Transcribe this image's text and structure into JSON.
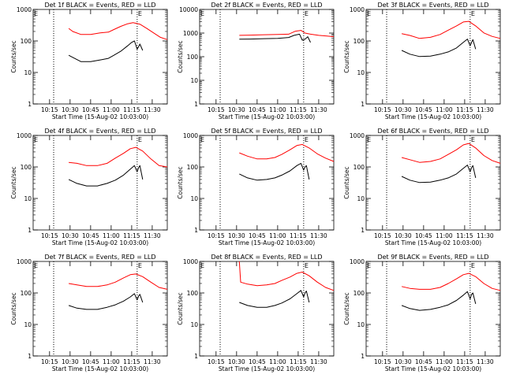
{
  "figure": {
    "colors": {
      "background": "#ffffff",
      "axes": "#000000",
      "events": "#000000",
      "lld": "#ff0000"
    },
    "ytick_labels": [
      "1",
      "10",
      "100",
      "1000"
    ],
    "xtick_labels": [
      "10:15",
      "10:30",
      "10:45",
      "11:00",
      "11:15",
      "11:30"
    ],
    "ylabel": "Counts/sec",
    "xlabel": "Start Time (15-Aug-02 10:03:00)",
    "marker_text": "E"
  },
  "chart_data": [
    {
      "type": "line",
      "title": "Det 1f BLACK = Events, RED = LLD",
      "xlabel": "Start Time (15-Aug-02 10:03:00)",
      "ylabel": "Counts/sec",
      "y_scale": "log",
      "ylim": [
        1,
        1000
      ],
      "xlim": [
        "10:03",
        "11:41"
      ],
      "x_ticks": [
        "10:15",
        "10:30",
        "10:45",
        "11:00",
        "11:15",
        "11:30"
      ],
      "vertical_dotted_lines": [
        "10:18",
        "11:19"
      ],
      "marker": {
        "text": "E",
        "x": "11:19"
      },
      "series": [
        {
          "name": "LLD",
          "color": "red",
          "x": [
            "10:29",
            "10:32",
            "10:38",
            "10:45",
            "10:52",
            "10:58",
            "11:02",
            "11:07",
            "11:12",
            "11:16",
            "11:21",
            "11:26",
            "11:31",
            "11:36",
            "11:41"
          ],
          "values": [
            250,
            200,
            160,
            160,
            180,
            190,
            230,
            290,
            350,
            380,
            340,
            250,
            180,
            130,
            110
          ]
        },
        {
          "name": "Events",
          "color": "black",
          "x": [
            "10:29",
            "10:32",
            "10:38",
            "10:45",
            "10:52",
            "10:58",
            "11:02",
            "11:07",
            "11:12",
            "11:15",
            "11:17",
            "11:19",
            "11:20",
            "11:21",
            "11:23"
          ],
          "values": [
            35,
            30,
            22,
            22,
            25,
            28,
            35,
            47,
            70,
            90,
            100,
            55,
            65,
            80,
            50
          ]
        }
      ]
    },
    {
      "type": "line",
      "title": "Det 2f BLACK = Events, RED = LLD",
      "xlabel": "Start Time (15-Aug-02 10:03:00)",
      "ylabel": "Counts/sec",
      "y_scale": "log",
      "ylim": [
        1,
        10000
      ],
      "xlim": [
        "10:03",
        "11:41"
      ],
      "x_ticks": [
        "10:15",
        "10:30",
        "10:45",
        "11:00",
        "11:15",
        "11:30"
      ],
      "vertical_dotted_lines": [
        "10:18",
        "11:19"
      ],
      "marker": {
        "text": "E",
        "x": "11:19"
      },
      "series": [
        {
          "name": "LLD",
          "color": "red",
          "x": [
            "10:32",
            "10:40",
            "10:50",
            "11:00",
            "11:08",
            "11:13",
            "11:17",
            "11:20",
            "11:24",
            "11:30",
            "11:36",
            "11:41"
          ],
          "values": [
            800,
            820,
            850,
            870,
            900,
            1200,
            1300,
            1000,
            900,
            800,
            750,
            700
          ]
        },
        {
          "name": "Events",
          "color": "black",
          "x": [
            "10:32",
            "10:40",
            "10:50",
            "11:00",
            "11:08",
            "11:12",
            "11:16",
            "11:18",
            "11:20",
            "11:22",
            "11:24"
          ],
          "values": [
            550,
            560,
            580,
            600,
            650,
            800,
            900,
            500,
            550,
            700,
            400
          ]
        }
      ]
    },
    {
      "type": "line",
      "title": "Det 3f BLACK = Events, RED = LLD",
      "xlabel": "Start Time (15-Aug-02 10:03:00)",
      "ylabel": "Counts/sec",
      "y_scale": "log",
      "ylim": [
        1,
        1000
      ],
      "xlim": [
        "10:03",
        "11:41"
      ],
      "x_ticks": [
        "10:15",
        "10:30",
        "10:45",
        "11:00",
        "11:15",
        "11:30"
      ],
      "vertical_dotted_lines": [
        "10:18",
        "11:19"
      ],
      "marker": {
        "text": "E",
        "x": "11:19"
      },
      "series": [
        {
          "name": "LLD",
          "color": "red",
          "x": [
            "10:29",
            "10:35",
            "10:42",
            "10:50",
            "10:57",
            "11:03",
            "11:09",
            "11:14",
            "11:18",
            "11:23",
            "11:29",
            "11:35",
            "11:41"
          ],
          "values": [
            170,
            150,
            120,
            130,
            160,
            220,
            300,
            400,
            420,
            300,
            180,
            140,
            120
          ]
        },
        {
          "name": "Events",
          "color": "black",
          "x": [
            "10:29",
            "10:35",
            "10:42",
            "10:50",
            "10:57",
            "11:03",
            "11:09",
            "11:14",
            "11:17",
            "11:19",
            "11:20",
            "11:21",
            "11:23"
          ],
          "values": [
            50,
            38,
            32,
            33,
            38,
            45,
            60,
            90,
            115,
            70,
            90,
            110,
            55
          ]
        }
      ]
    },
    {
      "type": "line",
      "title": "Det 4f BLACK = Events, RED = LLD",
      "xlabel": "Start Time (15-Aug-02 10:03:00)",
      "ylabel": "Counts/sec",
      "y_scale": "log",
      "ylim": [
        1,
        1000
      ],
      "xlim": [
        "10:03",
        "11:41"
      ],
      "x_ticks": [
        "10:15",
        "10:30",
        "10:45",
        "11:00",
        "11:15",
        "11:30"
      ],
      "vertical_dotted_lines": [
        "10:18",
        "11:19"
      ],
      "marker": {
        "text": "E",
        "x": "11:19"
      },
      "series": [
        {
          "name": "LLD",
          "color": "red",
          "x": [
            "10:29",
            "10:35",
            "10:42",
            "10:50",
            "10:57",
            "11:03",
            "11:09",
            "11:14",
            "11:18",
            "11:23",
            "11:29",
            "11:35",
            "11:41"
          ],
          "values": [
            140,
            130,
            110,
            110,
            130,
            190,
            270,
            380,
            420,
            320,
            180,
            110,
            100
          ]
        },
        {
          "name": "Events",
          "color": "black",
          "x": [
            "10:29",
            "10:35",
            "10:42",
            "10:50",
            "10:57",
            "11:03",
            "11:09",
            "11:14",
            "11:17",
            "11:19",
            "11:20",
            "11:21",
            "11:23"
          ],
          "values": [
            40,
            30,
            25,
            25,
            30,
            38,
            55,
            85,
            110,
            70,
            95,
            110,
            40
          ]
        }
      ]
    },
    {
      "type": "line",
      "title": "Det 5f BLACK = Events, RED = LLD",
      "xlabel": "Start Time (15-Aug-02 10:03:00)",
      "ylabel": "Counts/sec",
      "y_scale": "log",
      "ylim": [
        1,
        1000
      ],
      "xlim": [
        "10:03",
        "11:41"
      ],
      "x_ticks": [
        "10:15",
        "10:30",
        "10:45",
        "11:00",
        "11:15",
        "11:30"
      ],
      "vertical_dotted_lines": [
        "10:18",
        "11:19"
      ],
      "marker": {
        "text": "E",
        "x": "11:19"
      },
      "series": [
        {
          "name": "LLD",
          "color": "red",
          "x": [
            "10:32",
            "10:38",
            "10:45",
            "10:52",
            "10:58",
            "11:03",
            "11:09",
            "11:14",
            "11:18",
            "11:23",
            "11:29",
            "11:35",
            "11:41"
          ],
          "values": [
            280,
            220,
            180,
            180,
            200,
            250,
            350,
            480,
            520,
            400,
            260,
            190,
            150
          ]
        },
        {
          "name": "Events",
          "color": "black",
          "x": [
            "10:32",
            "10:38",
            "10:45",
            "10:52",
            "10:58",
            "11:03",
            "11:09",
            "11:14",
            "11:17",
            "11:19",
            "11:20",
            "11:21",
            "11:23"
          ],
          "values": [
            60,
            45,
            38,
            40,
            45,
            55,
            75,
            110,
            130,
            80,
            100,
            110,
            40
          ]
        }
      ]
    },
    {
      "type": "line",
      "title": "Det 6f BLACK = Events, RED = LLD",
      "xlabel": "Start Time (15-Aug-02 10:03:00)",
      "ylabel": "Counts/sec",
      "y_scale": "log",
      "ylim": [
        1,
        1000
      ],
      "xlim": [
        "10:03",
        "11:41"
      ],
      "x_ticks": [
        "10:15",
        "10:30",
        "10:45",
        "11:00",
        "11:15",
        "11:30"
      ],
      "vertical_dotted_lines": [
        "10:18",
        "11:19"
      ],
      "marker": {
        "text": "E",
        "x": "11:19"
      },
      "series": [
        {
          "name": "LLD",
          "color": "red",
          "x": [
            "10:29",
            "10:35",
            "10:42",
            "10:50",
            "10:57",
            "11:03",
            "11:09",
            "11:14",
            "11:18",
            "11:23",
            "11:29",
            "11:35",
            "11:41"
          ],
          "values": [
            200,
            170,
            140,
            150,
            180,
            250,
            350,
            500,
            560,
            400,
            230,
            160,
            130
          ]
        },
        {
          "name": "Events",
          "color": "black",
          "x": [
            "10:29",
            "10:35",
            "10:42",
            "10:50",
            "10:57",
            "11:03",
            "11:09",
            "11:14",
            "11:17",
            "11:19",
            "11:20",
            "11:21",
            "11:23"
          ],
          "values": [
            50,
            38,
            32,
            33,
            38,
            45,
            60,
            90,
            115,
            70,
            95,
            110,
            45
          ]
        }
      ]
    },
    {
      "type": "line",
      "title": "Det 7f BLACK = Events, RED = LLD",
      "xlabel": "Start Time (15-Aug-02 10:03:00)",
      "ylabel": "Counts/sec",
      "y_scale": "log",
      "ylim": [
        1,
        1000
      ],
      "xlim": [
        "10:03",
        "11:41"
      ],
      "x_ticks": [
        "10:15",
        "10:30",
        "10:45",
        "11:00",
        "11:15",
        "11:30"
      ],
      "vertical_dotted_lines": [
        "10:18",
        "11:19"
      ],
      "marker": {
        "text": "E",
        "x": "11:19"
      },
      "series": [
        {
          "name": "LLD",
          "color": "red",
          "x": [
            "10:29",
            "10:35",
            "10:42",
            "10:50",
            "10:57",
            "11:03",
            "11:09",
            "11:14",
            "11:18",
            "11:23",
            "11:29",
            "11:35",
            "11:41"
          ],
          "values": [
            200,
            180,
            160,
            160,
            180,
            220,
            300,
            380,
            400,
            330,
            220,
            150,
            130
          ]
        },
        {
          "name": "Events",
          "color": "black",
          "x": [
            "10:29",
            "10:35",
            "10:42",
            "10:50",
            "10:57",
            "11:03",
            "11:09",
            "11:14",
            "11:17",
            "11:19",
            "11:20",
            "11:21",
            "11:23"
          ],
          "values": [
            40,
            33,
            30,
            30,
            35,
            42,
            55,
            75,
            95,
            60,
            80,
            90,
            50
          ]
        }
      ]
    },
    {
      "type": "line",
      "title": "Det 8f BLACK = Events, RED = LLD",
      "xlabel": "Start Time (15-Aug-02 10:03:00)",
      "ylabel": "Counts/sec",
      "y_scale": "log",
      "ylim": [
        1,
        1000
      ],
      "xlim": [
        "10:03",
        "11:41"
      ],
      "x_ticks": [
        "10:15",
        "10:30",
        "10:45",
        "11:00",
        "11:15",
        "11:30"
      ],
      "vertical_dotted_lines": [
        "10:18",
        "11:19"
      ],
      "marker": {
        "text": "E",
        "x": "11:19"
      },
      "series": [
        {
          "name": "LLD",
          "color": "red",
          "x": [
            "10:32",
            "10:33",
            "10:38",
            "10:45",
            "10:52",
            "10:58",
            "11:03",
            "11:09",
            "11:14",
            "11:18",
            "11:23",
            "11:29",
            "11:35",
            "11:41"
          ],
          "values": [
            1000,
            220,
            190,
            170,
            180,
            200,
            250,
            320,
            420,
            460,
            350,
            220,
            150,
            120
          ]
        },
        {
          "name": "Events",
          "color": "black",
          "x": [
            "10:32",
            "10:38",
            "10:45",
            "10:52",
            "10:58",
            "11:03",
            "11:09",
            "11:14",
            "11:17",
            "11:19",
            "11:20",
            "11:21",
            "11:23"
          ],
          "values": [
            50,
            40,
            35,
            35,
            40,
            48,
            65,
            95,
            120,
            75,
            100,
            115,
            50
          ]
        }
      ]
    },
    {
      "type": "line",
      "title": "Det 9f BLACK = Events, RED = LLD",
      "xlabel": "Start Time (15-Aug-02 10:03:00)",
      "ylabel": "Counts/sec",
      "y_scale": "log",
      "ylim": [
        1,
        1000
      ],
      "xlim": [
        "10:03",
        "11:41"
      ],
      "x_ticks": [
        "10:15",
        "10:30",
        "10:45",
        "11:00",
        "11:15",
        "11:30"
      ],
      "vertical_dotted_lines": [
        "10:18",
        "11:19"
      ],
      "marker": {
        "text": "E",
        "x": "11:19"
      },
      "series": [
        {
          "name": "LLD",
          "color": "red",
          "x": [
            "10:29",
            "10:35",
            "10:42",
            "10:50",
            "10:57",
            "11:03",
            "11:09",
            "11:14",
            "11:18",
            "11:23",
            "11:29",
            "11:35",
            "11:41"
          ],
          "values": [
            160,
            140,
            130,
            130,
            150,
            200,
            280,
            380,
            420,
            330,
            200,
            140,
            120
          ]
        },
        {
          "name": "Events",
          "color": "black",
          "x": [
            "10:29",
            "10:35",
            "10:42",
            "10:50",
            "10:57",
            "11:03",
            "11:09",
            "11:14",
            "11:17",
            "11:19",
            "11:20",
            "11:21",
            "11:23"
          ],
          "values": [
            40,
            32,
            28,
            30,
            35,
            42,
            58,
            85,
            110,
            65,
            90,
            100,
            45
          ]
        }
      ]
    }
  ]
}
